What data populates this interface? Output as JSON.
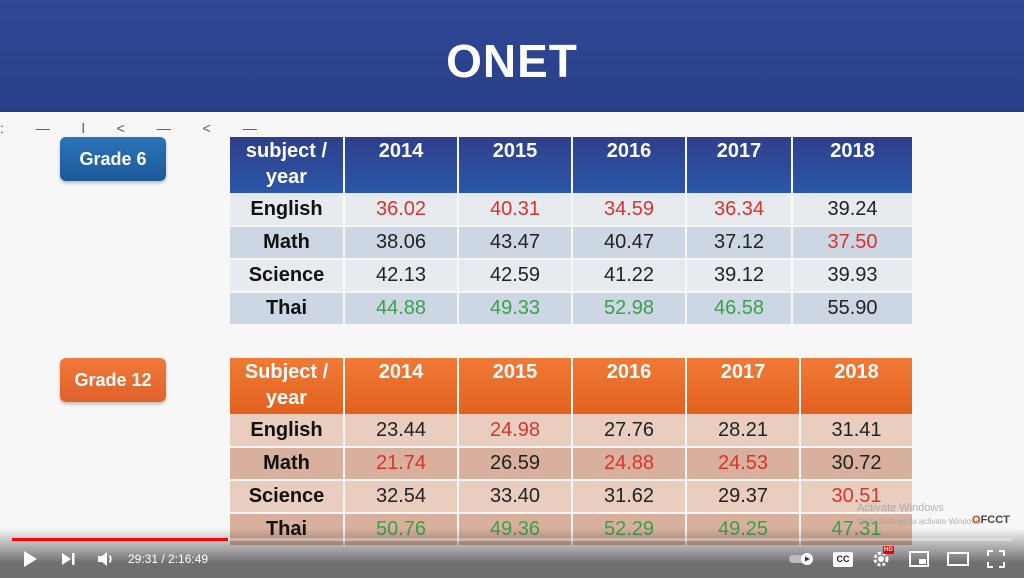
{
  "slide": {
    "title": "ONET",
    "deco_text": ": — l < — < —"
  },
  "grade6": {
    "badge": "Grade 6",
    "header": [
      "subject / year",
      "2014",
      "2015",
      "2016",
      "2017",
      "2018"
    ],
    "rows": [
      {
        "subject": "English",
        "subject_color": "red",
        "values": [
          "36.02",
          "40.31",
          "34.59",
          "36.34",
          "39.24"
        ],
        "colors": [
          "red",
          "red",
          "red",
          "red",
          "black"
        ]
      },
      {
        "subject": "Math",
        "subject_color": "black",
        "values": [
          "38.06",
          "43.47",
          "40.47",
          "37.12",
          "37.50"
        ],
        "colors": [
          "black",
          "black",
          "black",
          "black",
          "red"
        ]
      },
      {
        "subject": "Science",
        "subject_color": "black",
        "values": [
          "42.13",
          "42.59",
          "41.22",
          "39.12",
          "39.93"
        ],
        "colors": [
          "black",
          "black",
          "black",
          "black",
          "black"
        ]
      },
      {
        "subject": "Thai",
        "subject_color": "black",
        "values": [
          "44.88",
          "49.33",
          "52.98",
          "46.58",
          "55.90"
        ],
        "colors": [
          "green",
          "green",
          "green",
          "green",
          "black"
        ]
      }
    ]
  },
  "grade12": {
    "badge": "Grade 12",
    "header": [
      "Subject / year",
      "2014",
      "2015",
      "2016",
      "2017",
      "2018"
    ],
    "rows": [
      {
        "subject": "English",
        "subject_color": "red",
        "values": [
          "23.44",
          "24.98",
          "27.76",
          "28.21",
          "31.41"
        ],
        "colors": [
          "black",
          "red",
          "black",
          "black",
          "black"
        ]
      },
      {
        "subject": "Math",
        "subject_color": "black",
        "values": [
          "21.74",
          "26.59",
          "24.88",
          "24.53",
          "30.72"
        ],
        "colors": [
          "red",
          "black",
          "red",
          "red",
          "black"
        ]
      },
      {
        "subject": "Science",
        "subject_color": "black",
        "values": [
          "32.54",
          "33.40",
          "31.62",
          "29.37",
          "30.51"
        ],
        "colors": [
          "black",
          "black",
          "black",
          "black",
          "red"
        ]
      },
      {
        "subject": "Thai",
        "subject_color": "black",
        "values": [
          "50.76",
          "49.36",
          "52.29",
          "49.25",
          "47.31"
        ],
        "colors": [
          "green",
          "green",
          "green",
          "green",
          "green"
        ]
      }
    ]
  },
  "overlay": {
    "watermark_line1": "Activate Windows",
    "watermark_line2": "Go to Settings to activate Windows.",
    "brand_mark": "O",
    "brand_text": "FCCT"
  },
  "player": {
    "time_current": "29:31",
    "time_separator": " / ",
    "time_total": "2:16:49",
    "progress_fraction": 0.216,
    "hd_badge": "HD",
    "cc_label": "CC",
    "icons": [
      "play-icon",
      "next-icon",
      "volume-icon",
      "autoplay-toggle-icon",
      "captions-icon",
      "settings-icon",
      "miniplayer-icon",
      "theater-icon",
      "fullscreen-icon"
    ],
    "colors": {
      "progress": "#ff0000",
      "text": "#ffffff"
    }
  }
}
